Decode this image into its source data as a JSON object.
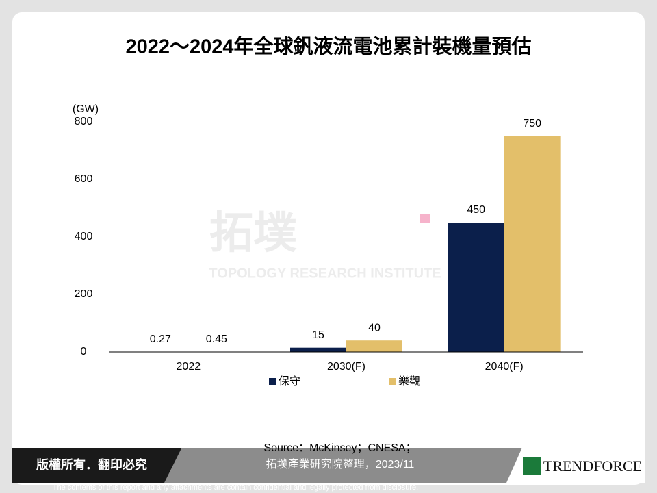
{
  "chart_data": {
    "type": "bar",
    "title": "2022～2024年全球釩液流電池累計裝機量預估",
    "y_label": "(GW)",
    "categories": [
      "2022",
      "2030(F)",
      "2040(F)"
    ],
    "series": [
      {
        "name": "保守",
        "color": "#0b1f4b",
        "values": [
          0.27,
          15,
          450
        ]
      },
      {
        "name": "樂觀",
        "color": "#e3bf6a",
        "values": [
          0.45,
          40,
          750
        ]
      }
    ],
    "ylim": [
      0,
      800
    ],
    "yticks": [
      0,
      200,
      400,
      600,
      800
    ],
    "grid": false
  },
  "source": [
    "Source：McKinsey；CNESA；",
    "拓墣產業研究院整理，2023/11"
  ],
  "watermark": {
    "logo": "拓墣",
    "name": "TOPOLOGY RESEARCH INSTITUTE"
  },
  "footer": {
    "copyright": "版權所有．翻印必究",
    "brand": "TRENDFORCE",
    "disclaimer": "The contents of this report and any attachments are contain confidential and legally protected from disclosure."
  }
}
